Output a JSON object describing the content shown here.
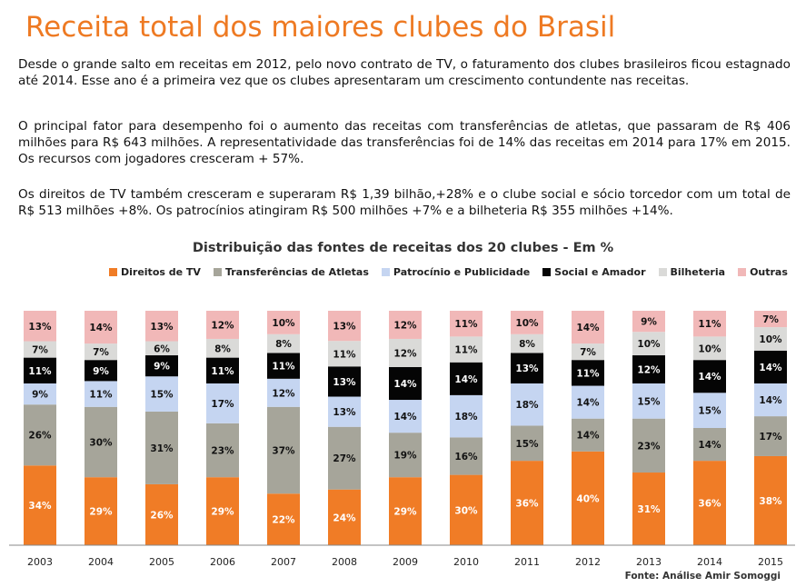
{
  "title": "Receita total dos maiores clubes do Brasil",
  "paragraphs": [
    "Desde o grande salto em receitas em 2012, pelo novo contrato de TV, o faturamento dos clubes brasileiros ficou estagnado até 2014. Esse ano é a primeira vez que os clubes apresentaram um crescimento contundente nas receitas.",
    "O principal fator para desempenho foi o aumento das receitas com transferências de atletas, que passaram de R$ 406 milhões para R$ 643 milhões. A representatividade das transferências foi de 14% das receitas em 2014 para 17% em 2015. Os recursos com jogadores cresceram + 57%.",
    "Os direitos de TV também cresceram e superaram R$ 1,39 bilhão,+28% e o clube social e sócio torcedor com um total de R$ 513 milhões +8%. Os patrocínios atingiram R$ 500 milhões +7% e a bilheteria R$ 355 milhões +14%."
  ],
  "source": "Fonte: Análise Amir Somoggi",
  "chart_data": {
    "type": "bar",
    "stacked": true,
    "percent_stacked": true,
    "title": "Distribuição das fontes de receitas dos 20 clubes - Em %",
    "legend_position": "top",
    "categories": [
      "2003",
      "2004",
      "2005",
      "2006",
      "2007",
      "2008",
      "2009",
      "2010",
      "2011",
      "2012",
      "2013",
      "2014",
      "2015"
    ],
    "series": [
      {
        "name": "Direitos de TV",
        "color": "#f07c26",
        "label_color": "#ffffff",
        "values": [
          34,
          29,
          26,
          29,
          22,
          24,
          29,
          30,
          36,
          40,
          31,
          36,
          38
        ]
      },
      {
        "name": "Transferências de Atletas",
        "color": "#a6a59a",
        "label_color": "#111111",
        "values": [
          26,
          30,
          31,
          23,
          37,
          27,
          19,
          16,
          15,
          14,
          23,
          14,
          17
        ]
      },
      {
        "name": "Patrocínio e Publicidade",
        "color": "#c5d5f1",
        "label_color": "#111111",
        "values": [
          9,
          11,
          15,
          17,
          12,
          13,
          14,
          18,
          18,
          14,
          15,
          15,
          14
        ]
      },
      {
        "name": "Social e Amador",
        "color": "#050505",
        "label_color": "#ffffff",
        "values": [
          11,
          9,
          9,
          11,
          11,
          13,
          14,
          14,
          13,
          11,
          12,
          14,
          14
        ]
      },
      {
        "name": "Bilheteria",
        "color": "#dadad8",
        "label_color": "#111111",
        "values": [
          7,
          7,
          6,
          8,
          8,
          11,
          12,
          11,
          8,
          7,
          10,
          10,
          10
        ]
      },
      {
        "name": "Outras",
        "color": "#f1b8b8",
        "label_color": "#111111",
        "values": [
          13,
          14,
          13,
          12,
          10,
          13,
          12,
          11,
          10,
          14,
          9,
          11,
          7
        ]
      }
    ]
  }
}
